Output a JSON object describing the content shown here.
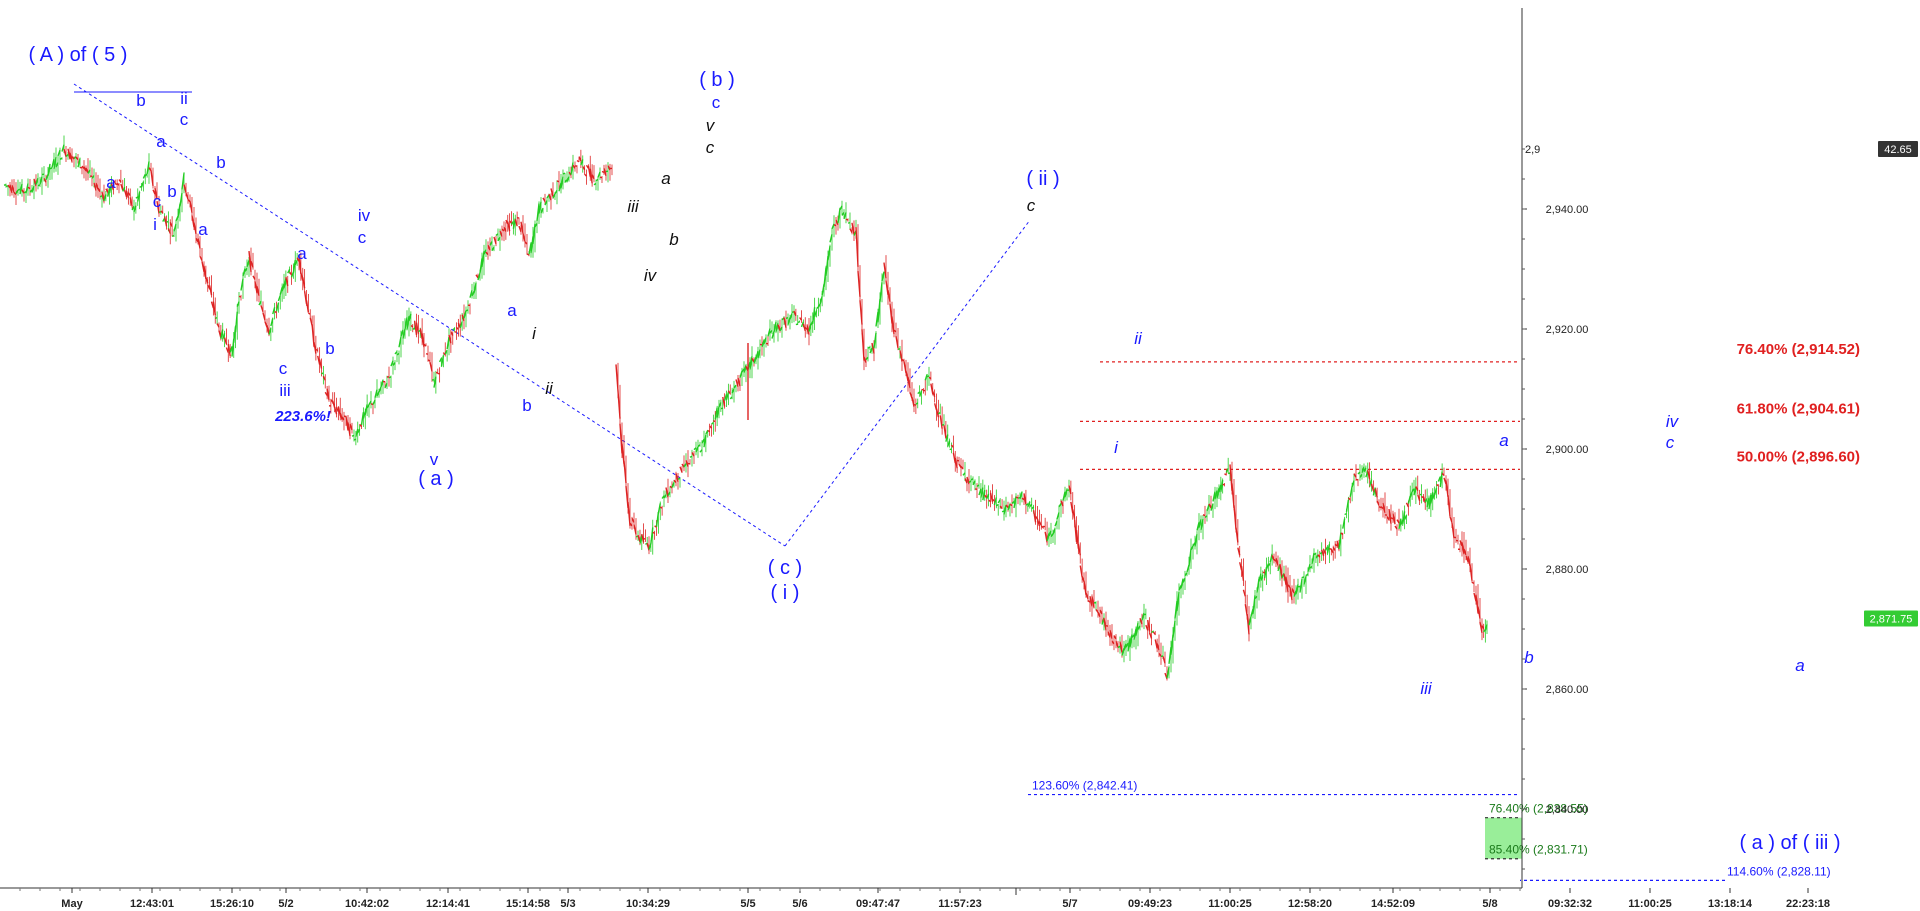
{
  "chart_data": {
    "type": "line",
    "title": "",
    "xlabel": "",
    "ylabel": "",
    "ylim": [
      2822,
      2955
    ],
    "ytick_labels": [
      "2,860.00",
      "2,880.00",
      "2,900.00",
      "2,920.00",
      "2,940.00",
      "2,840.00"
    ],
    "yticks": [
      2860,
      2880,
      2900,
      2920,
      2940,
      2840
    ],
    "top_partial_tick": {
      "value": 2950,
      "label": "2,9"
    },
    "xtick_labels": [
      "May",
      "12:43:01",
      "15:26:10",
      "5/2",
      "10:42:02",
      "12:14:41",
      "15:14:58",
      "5/3",
      "10:34:29",
      "5/5",
      "5/6",
      "09:47:47",
      "11:57:23",
      "5/7",
      "09:49:23",
      "11:00:25",
      "12:58:20",
      "14:52:09",
      "5/8",
      "09:32:32",
      "11:00:25",
      "13:18:14",
      "22:23:18"
    ],
    "price_tags": [
      {
        "label": "42.65",
        "value": 2950,
        "color": "#333333"
      },
      {
        "label": "2,871.75",
        "value": 2871.75,
        "color": "#33cc33"
      }
    ],
    "series": [
      {
        "segment": 1,
        "points": [
          [
            0,
            2944
          ],
          [
            20,
            2943
          ],
          [
            40,
            2945
          ],
          [
            60,
            2950
          ],
          [
            80,
            2947
          ],
          [
            100,
            2942
          ],
          [
            115,
            2945
          ],
          [
            130,
            2940
          ],
          [
            145,
            2947
          ],
          [
            155,
            2940
          ],
          [
            170,
            2936
          ],
          [
            180,
            2945
          ],
          [
            200,
            2930
          ],
          [
            215,
            2920
          ],
          [
            228,
            2916
          ],
          [
            235,
            2925
          ],
          [
            245,
            2932
          ],
          [
            255,
            2925
          ],
          [
            265,
            2920
          ],
          [
            280,
            2927
          ],
          [
            295,
            2932
          ],
          [
            310,
            2918
          ],
          [
            325,
            2908
          ],
          [
            340,
            2905
          ],
          [
            350,
            2902
          ],
          [
            365,
            2907
          ],
          [
            385,
            2912
          ],
          [
            395,
            2917
          ],
          [
            405,
            2922
          ],
          [
            420,
            2918
          ],
          [
            430,
            2911
          ],
          [
            445,
            2918
          ],
          [
            460,
            2922
          ],
          [
            480,
            2932
          ],
          [
            500,
            2937
          ],
          [
            515,
            2938
          ],
          [
            525,
            2932
          ],
          [
            535,
            2940
          ],
          [
            555,
            2944
          ],
          [
            575,
            2948
          ],
          [
            590,
            2945
          ],
          [
            608,
            2947
          ]
        ]
      },
      {
        "segment": 2,
        "points": [
          [
            612,
            2915
          ],
          [
            618,
            2900
          ],
          [
            626,
            2888
          ],
          [
            636,
            2885
          ],
          [
            645,
            2884
          ],
          [
            660,
            2892
          ],
          [
            680,
            2897
          ],
          [
            700,
            2901
          ],
          [
            715,
            2907
          ],
          [
            730,
            2910
          ],
          [
            750,
            2915
          ],
          [
            770,
            2920
          ],
          [
            790,
            2922
          ],
          [
            805,
            2920
          ],
          [
            820,
            2927
          ],
          [
            828,
            2936
          ],
          [
            838,
            2940
          ],
          [
            852,
            2936
          ],
          [
            860,
            2915
          ],
          [
            870,
            2917
          ],
          [
            880,
            2930
          ],
          [
            890,
            2920
          ],
          [
            900,
            2914
          ],
          [
            910,
            2907
          ],
          [
            925,
            2912
          ],
          [
            940,
            2903
          ],
          [
            955,
            2897
          ],
          [
            975,
            2893
          ],
          [
            1000,
            2890
          ],
          [
            1020,
            2892
          ],
          [
            1045,
            2885
          ],
          [
            1065,
            2894
          ],
          [
            1080,
            2877
          ],
          [
            1100,
            2871
          ],
          [
            1120,
            2866
          ],
          [
            1140,
            2872
          ],
          [
            1155,
            2867
          ],
          [
            1163,
            2862
          ],
          [
            1175,
            2876
          ],
          [
            1195,
            2887
          ],
          [
            1215,
            2893
          ],
          [
            1226,
            2897
          ],
          [
            1232,
            2887
          ],
          [
            1245,
            2870
          ],
          [
            1255,
            2878
          ],
          [
            1270,
            2882
          ],
          [
            1290,
            2875
          ],
          [
            1310,
            2882
          ],
          [
            1335,
            2884
          ],
          [
            1350,
            2895
          ],
          [
            1360,
            2897
          ],
          [
            1375,
            2891
          ],
          [
            1395,
            2887
          ],
          [
            1410,
            2893
          ],
          [
            1425,
            2891
          ],
          [
            1440,
            2896
          ],
          [
            1450,
            2885
          ],
          [
            1462,
            2883
          ],
          [
            1470,
            2877
          ],
          [
            1478,
            2870
          ],
          [
            1483,
            2871
          ]
        ]
      }
    ],
    "wave_labels": [
      {
        "text": "( A ) of ( 5 )"
      },
      {
        "text": "b"
      },
      {
        "text": "ii"
      },
      {
        "text": "c"
      },
      {
        "text": "a"
      },
      {
        "text": "b"
      },
      {
        "text": "a"
      },
      {
        "text": "c"
      },
      {
        "text": "b"
      },
      {
        "text": "i"
      },
      {
        "text": "a"
      },
      {
        "text": "a"
      },
      {
        "text": "b"
      },
      {
        "text": "c"
      },
      {
        "text": "iii"
      },
      {
        "text": "223.6%!"
      },
      {
        "text": "iv"
      },
      {
        "text": "c"
      },
      {
        "text": "v"
      },
      {
        "text": "( a )"
      },
      {
        "text": "a"
      },
      {
        "text": "b"
      },
      {
        "text": "i"
      },
      {
        "text": "ii"
      },
      {
        "text": "iii"
      },
      {
        "text": "iv"
      },
      {
        "text": "a"
      },
      {
        "text": "b"
      },
      {
        "text": "( b )"
      },
      {
        "text": "c"
      },
      {
        "text": "v"
      },
      {
        "text": "c"
      },
      {
        "text": "( c )"
      },
      {
        "text": "( i )"
      },
      {
        "text": "( ii )"
      },
      {
        "text": "c"
      },
      {
        "text": "ii"
      },
      {
        "text": "i"
      },
      {
        "text": "a"
      },
      {
        "text": "iii"
      },
      {
        "text": "b"
      },
      {
        "text": "iv"
      },
      {
        "text": "c"
      },
      {
        "text": "a"
      },
      {
        "text": "( a ) of ( iii )"
      }
    ],
    "fib_levels": [
      {
        "label": "76.40% (2,914.52)",
        "value": 2914.52,
        "color": "#e02020"
      },
      {
        "label": "61.80% (2,904.61)",
        "value": 2904.61,
        "color": "#e02020"
      },
      {
        "label": "50.00% (2,896.60)",
        "value": 2896.6,
        "color": "#e02020"
      },
      {
        "label": "123.60% (2,842.41)",
        "value": 2842.41,
        "color": "#1a1aff"
      },
      {
        "label": "76.40% (2,838.55)",
        "value": 2838.55,
        "color": "#1a7a1a"
      },
      {
        "label": "85.40% (2,831.71)",
        "value": 2831.71,
        "color": "#1a7a1a"
      },
      {
        "label": "114.60% (2,828.11)",
        "value": 2828.11,
        "color": "#1a1aff"
      }
    ],
    "target_zone": {
      "from": 2831.71,
      "to": 2838.55,
      "color": "#99ee99"
    },
    "colors": {
      "up": "#22cc22",
      "down": "#dd2222",
      "wave_blue": "#1a1aff",
      "wave_black": "#111111",
      "fib_red": "#e02020"
    }
  }
}
